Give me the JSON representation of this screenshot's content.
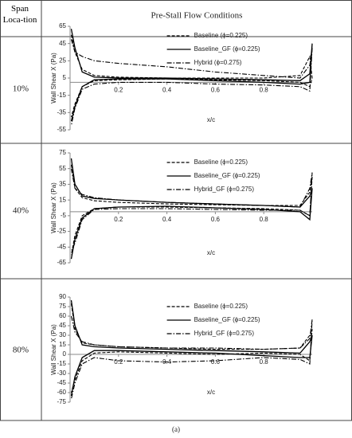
{
  "table": {
    "header": [
      "Span Loca-tion",
      "Pre-Stall Flow Conditions"
    ],
    "rows": [
      "10%",
      "40%",
      "80%"
    ]
  },
  "caption": "(a)",
  "chart_data": [
    {
      "type": "line",
      "ylabel": "Wall Shear X (Pa)",
      "xlabel": "x/c",
      "legend": "upper right",
      "x": [
        0.005,
        0.02,
        0.05,
        0.1,
        0.2,
        0.4,
        0.6,
        0.8,
        0.95,
        0.99,
        1.0,
        0.99,
        0.95,
        0.8,
        0.6,
        0.4,
        0.2,
        0.1,
        0.05,
        0.02,
        0.005
      ],
      "xlim": [
        0,
        1
      ],
      "xticks": [
        0.2,
        0.4,
        0.6,
        0.8
      ],
      "ylim": [
        -55,
        65
      ],
      "yticks": [
        65,
        45,
        25,
        5,
        -15,
        -35,
        -55
      ],
      "series": [
        {
          "name": "Baseline (ϕ=0.225)",
          "color": "#000000",
          "line_style": "dashed",
          "values": [
            55,
            35,
            15,
            8,
            6,
            5,
            5,
            5,
            8,
            30,
            5,
            -5,
            0,
            2,
            3,
            4,
            3,
            2,
            -5,
            -25,
            -40
          ]
        },
        {
          "name": "Baseline_GF (ϕ=0.225)",
          "color": "#000000",
          "line_style": "solid",
          "values": [
            62,
            40,
            12,
            6,
            5,
            5,
            4,
            3,
            2,
            10,
            45,
            0,
            -2,
            0,
            2,
            4,
            4,
            3,
            -5,
            -28,
            -45
          ]
        },
        {
          "name": "Hybrid (ϕ=0.275)",
          "color": "#000000",
          "line_style": "dash-dot",
          "values": [
            50,
            35,
            30,
            25,
            22,
            18,
            12,
            8,
            5,
            20,
            40,
            -10,
            -5,
            -3,
            -2,
            0,
            0,
            -2,
            -8,
            -30,
            -50
          ]
        }
      ]
    },
    {
      "type": "line",
      "ylabel": "Wall Shear X (Pa)",
      "xlabel": "x/c",
      "legend": "upper right",
      "x": [
        0.005,
        0.02,
        0.05,
        0.1,
        0.2,
        0.4,
        0.6,
        0.8,
        0.95,
        0.99,
        1.0,
        0.99,
        0.95,
        0.8,
        0.6,
        0.4,
        0.2,
        0.1,
        0.05,
        0.02,
        0.005
      ],
      "xlim": [
        0,
        1
      ],
      "xticks": [
        0.2,
        0.4,
        0.6,
        0.8
      ],
      "ylim": [
        -65,
        75
      ],
      "yticks": [
        75,
        55,
        35,
        15,
        -5,
        -25,
        -45,
        -65
      ],
      "series": [
        {
          "name": "Baseline (ϕ=0.225)",
          "color": "#000000",
          "line_style": "dashed",
          "values": [
            60,
            30,
            18,
            14,
            12,
            10,
            9,
            8,
            8,
            25,
            45,
            -5,
            2,
            4,
            5,
            6,
            6,
            4,
            -5,
            -30,
            -55
          ]
        },
        {
          "name": "Baseline_GF (ϕ=0.225)",
          "color": "#000000",
          "line_style": "solid",
          "values": [
            68,
            35,
            20,
            17,
            15,
            12,
            10,
            8,
            6,
            20,
            30,
            -10,
            0,
            3,
            5,
            7,
            6,
            4,
            -8,
            -35,
            -60
          ]
        },
        {
          "name": "Hybrid_GF (ϕ=0.275)",
          "color": "#000000",
          "line_style": "dash-dot",
          "values": [
            55,
            30,
            22,
            18,
            15,
            12,
            10,
            8,
            6,
            30,
            50,
            -5,
            2,
            2,
            3,
            4,
            4,
            3,
            -10,
            -40,
            -50
          ]
        }
      ]
    },
    {
      "type": "line",
      "ylabel": "Wall Shear X (Pa)",
      "xlabel": "x/c",
      "legend": "upper right",
      "x": [
        0.005,
        0.02,
        0.05,
        0.1,
        0.2,
        0.4,
        0.6,
        0.8,
        0.95,
        0.99,
        1.0,
        0.99,
        0.95,
        0.8,
        0.6,
        0.4,
        0.2,
        0.1,
        0.05,
        0.02,
        0.005
      ],
      "xlim": [
        0,
        1
      ],
      "xticks": [
        0.2,
        0.4,
        0.6,
        0.8
      ],
      "ylim": [
        -75,
        90
      ],
      "yticks": [
        90,
        75,
        60,
        45,
        30,
        15,
        0,
        -15,
        -30,
        -45,
        -60,
        -75
      ],
      "series": [
        {
          "name": "Baseline (ϕ=0.225)",
          "color": "#000000",
          "line_style": "dashed",
          "values": [
            80,
            40,
            18,
            15,
            12,
            10,
            8,
            8,
            10,
            30,
            40,
            -10,
            0,
            2,
            0,
            2,
            4,
            2,
            -10,
            -40,
            -60
          ]
        },
        {
          "name": "Baseline_GF (ϕ=0.225)",
          "color": "#000000",
          "line_style": "solid",
          "values": [
            85,
            45,
            15,
            12,
            10,
            8,
            6,
            4,
            2,
            20,
            30,
            -5,
            -5,
            -2,
            2,
            4,
            6,
            6,
            -5,
            -35,
            -65
          ]
        },
        {
          "name": "Hybrid_GF (ϕ=0.275)",
          "color": "#000000",
          "line_style": "dash-dot",
          "values": [
            60,
            35,
            20,
            15,
            12,
            10,
            10,
            8,
            10,
            25,
            55,
            -15,
            -8,
            -5,
            -10,
            -12,
            -10,
            -5,
            -15,
            -45,
            -70
          ]
        }
      ]
    }
  ]
}
